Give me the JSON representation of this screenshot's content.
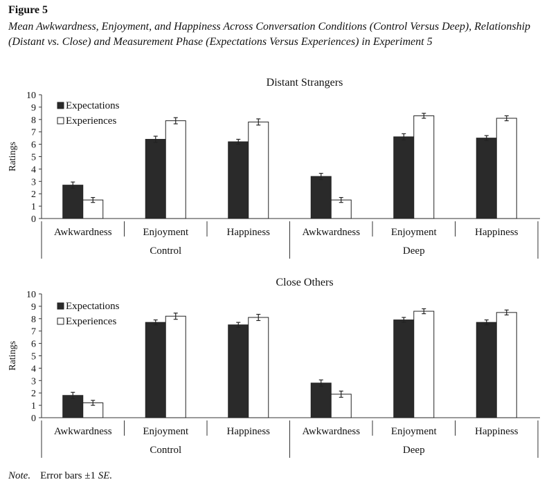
{
  "figure": {
    "label": "Figure 5",
    "caption": "Mean Awkwardness, Enjoyment, and Happiness Across Conversation Conditions (Control Versus Deep), Relationship (Distant vs. Close) and Measurement Phase (Expectations Versus Experiences) in Experiment 5"
  },
  "note": {
    "prefix": "Note.",
    "text": "Error bars ±1",
    "se": "SE."
  },
  "colors": {
    "expectations": "#2a2a2a",
    "experiences": "#ffffff",
    "axis": "#333333"
  },
  "chart_data": [
    {
      "type": "bar",
      "title": "Distant Strangers",
      "ylabel": "Ratings",
      "ylim": [
        0,
        10
      ],
      "yticks": [
        "0",
        "1",
        "2",
        "3",
        "4",
        "5",
        "6",
        "7",
        "8",
        "9",
        "10"
      ],
      "groups": [
        "Control",
        "Deep"
      ],
      "categories": [
        "Awkwardness",
        "Enjoyment",
        "Happiness",
        "Awkwardness",
        "Enjoyment",
        "Happiness"
      ],
      "legend": "top-left",
      "series": [
        {
          "name": "Expectations",
          "values": [
            2.7,
            6.4,
            6.2,
            3.4,
            6.6,
            6.5
          ],
          "se": [
            0.25,
            0.25,
            0.2,
            0.25,
            0.25,
            0.2
          ]
        },
        {
          "name": "Experiences",
          "values": [
            1.5,
            7.9,
            7.8,
            1.5,
            8.3,
            8.1
          ],
          "se": [
            0.2,
            0.25,
            0.25,
            0.2,
            0.2,
            0.2
          ]
        }
      ]
    },
    {
      "type": "bar",
      "title": "Close Others",
      "ylabel": "Ratings",
      "ylim": [
        0,
        10
      ],
      "yticks": [
        "0",
        "1",
        "2",
        "3",
        "4",
        "5",
        "6",
        "7",
        "8",
        "9",
        "10"
      ],
      "groups": [
        "Control",
        "Deep"
      ],
      "categories": [
        "Awkwardness",
        "Enjoyment",
        "Happiness",
        "Awkwardness",
        "Enjoyment",
        "Happiness"
      ],
      "legend": "top-left",
      "series": [
        {
          "name": "Expectations",
          "values": [
            1.8,
            7.7,
            7.5,
            2.8,
            7.9,
            7.7
          ],
          "se": [
            0.25,
            0.2,
            0.2,
            0.25,
            0.2,
            0.2
          ]
        },
        {
          "name": "Experiences",
          "values": [
            1.2,
            8.2,
            8.1,
            1.9,
            8.6,
            8.5
          ],
          "se": [
            0.2,
            0.25,
            0.25,
            0.25,
            0.2,
            0.2
          ]
        }
      ]
    }
  ]
}
